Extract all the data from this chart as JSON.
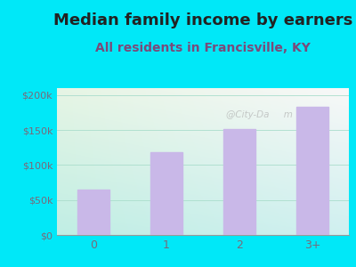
{
  "title": "Median family income by earners",
  "subtitle": "All residents in Francisville, KY",
  "categories": [
    "0",
    "1",
    "2",
    "3+"
  ],
  "values": [
    65000,
    118000,
    151000,
    183000
  ],
  "bar_color": "#c9b8e8",
  "title_fontsize": 13,
  "subtitle_fontsize": 10,
  "title_color": "#222222",
  "subtitle_color": "#7a4a7a",
  "tick_label_color": "#7a6a7a",
  "ytick_labels": [
    "$0",
    "$50k",
    "$100k",
    "$150k",
    "$200k"
  ],
  "ytick_values": [
    0,
    50000,
    100000,
    150000,
    200000
  ],
  "ylim": [
    0,
    210000
  ],
  "background_outer": "#00e8f8",
  "bg_top_left": "#e6f5e4",
  "bg_bottom_right": "#c8eee8",
  "watermark": "@City-Da     m"
}
